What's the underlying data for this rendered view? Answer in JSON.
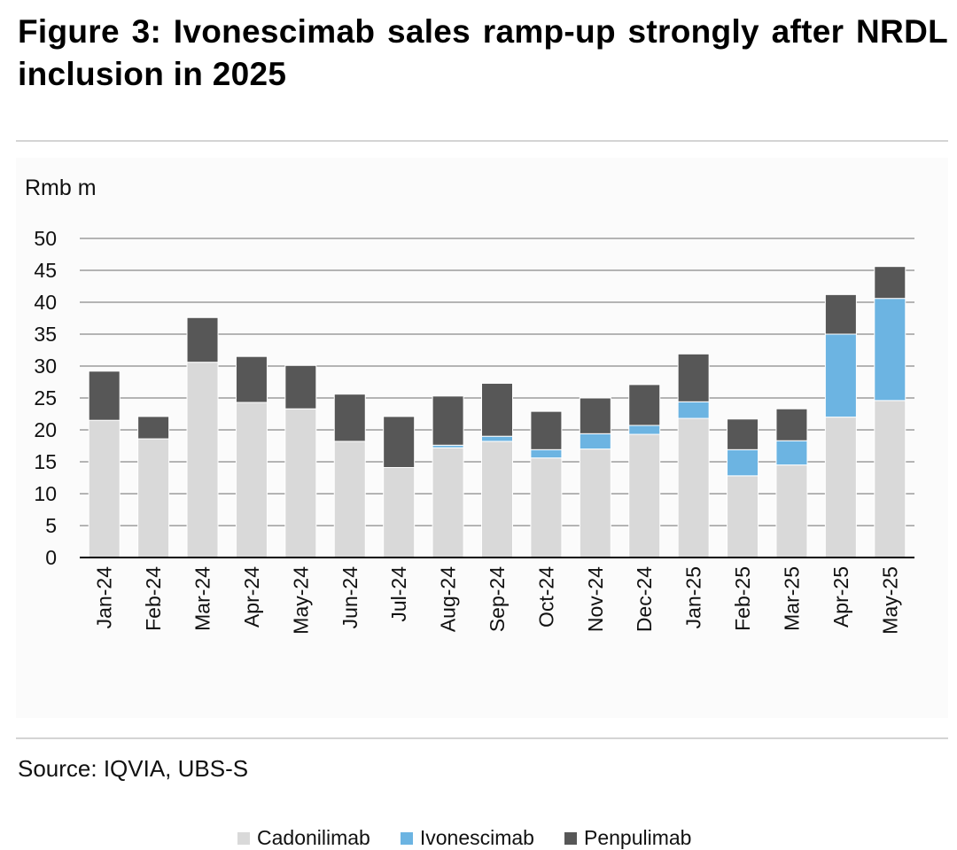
{
  "title": "Figure 3: Ivonescimab sales ramp-up strongly after NRDL inclusion in 2025",
  "source": "Source: IQVIA, UBS-S",
  "chart_data": {
    "type": "bar",
    "stacked": true,
    "ylabel": "Rmb m",
    "ylim": [
      0,
      50
    ],
    "yticks": [
      0,
      5,
      10,
      15,
      20,
      25,
      30,
      35,
      40,
      45,
      50
    ],
    "grid": true,
    "legend_position": "bottom",
    "categories": [
      "Jan-24",
      "Feb-24",
      "Mar-24",
      "Apr-24",
      "May-24",
      "Jun-24",
      "Jul-24",
      "Aug-24",
      "Sep-24",
      "Oct-24",
      "Nov-24",
      "Dec-24",
      "Jan-25",
      "Feb-25",
      "Mar-25",
      "Apr-25",
      "May-25"
    ],
    "series": [
      {
        "name": "Cadonilimab",
        "color": "#d9d9d9",
        "values": [
          21.5,
          18.6,
          30.6,
          24.3,
          23.3,
          18.2,
          14.1,
          17.2,
          18.2,
          15.6,
          17.0,
          19.3,
          21.8,
          12.8,
          14.5,
          22.0,
          24.6
        ]
      },
      {
        "name": "Ivonescimab",
        "color": "#6cb4e2",
        "values": [
          0,
          0,
          0,
          0,
          0,
          0,
          0,
          0.4,
          0.8,
          1.3,
          2.4,
          1.4,
          2.6,
          4.1,
          3.8,
          13.0,
          16.0
        ]
      },
      {
        "name": "Penpulimab",
        "color": "#575757",
        "values": [
          7.7,
          3.5,
          7.0,
          7.2,
          6.8,
          7.4,
          8.0,
          7.7,
          8.3,
          6.0,
          5.6,
          6.4,
          7.5,
          4.8,
          5.0,
          6.2,
          5.0
        ]
      }
    ]
  }
}
